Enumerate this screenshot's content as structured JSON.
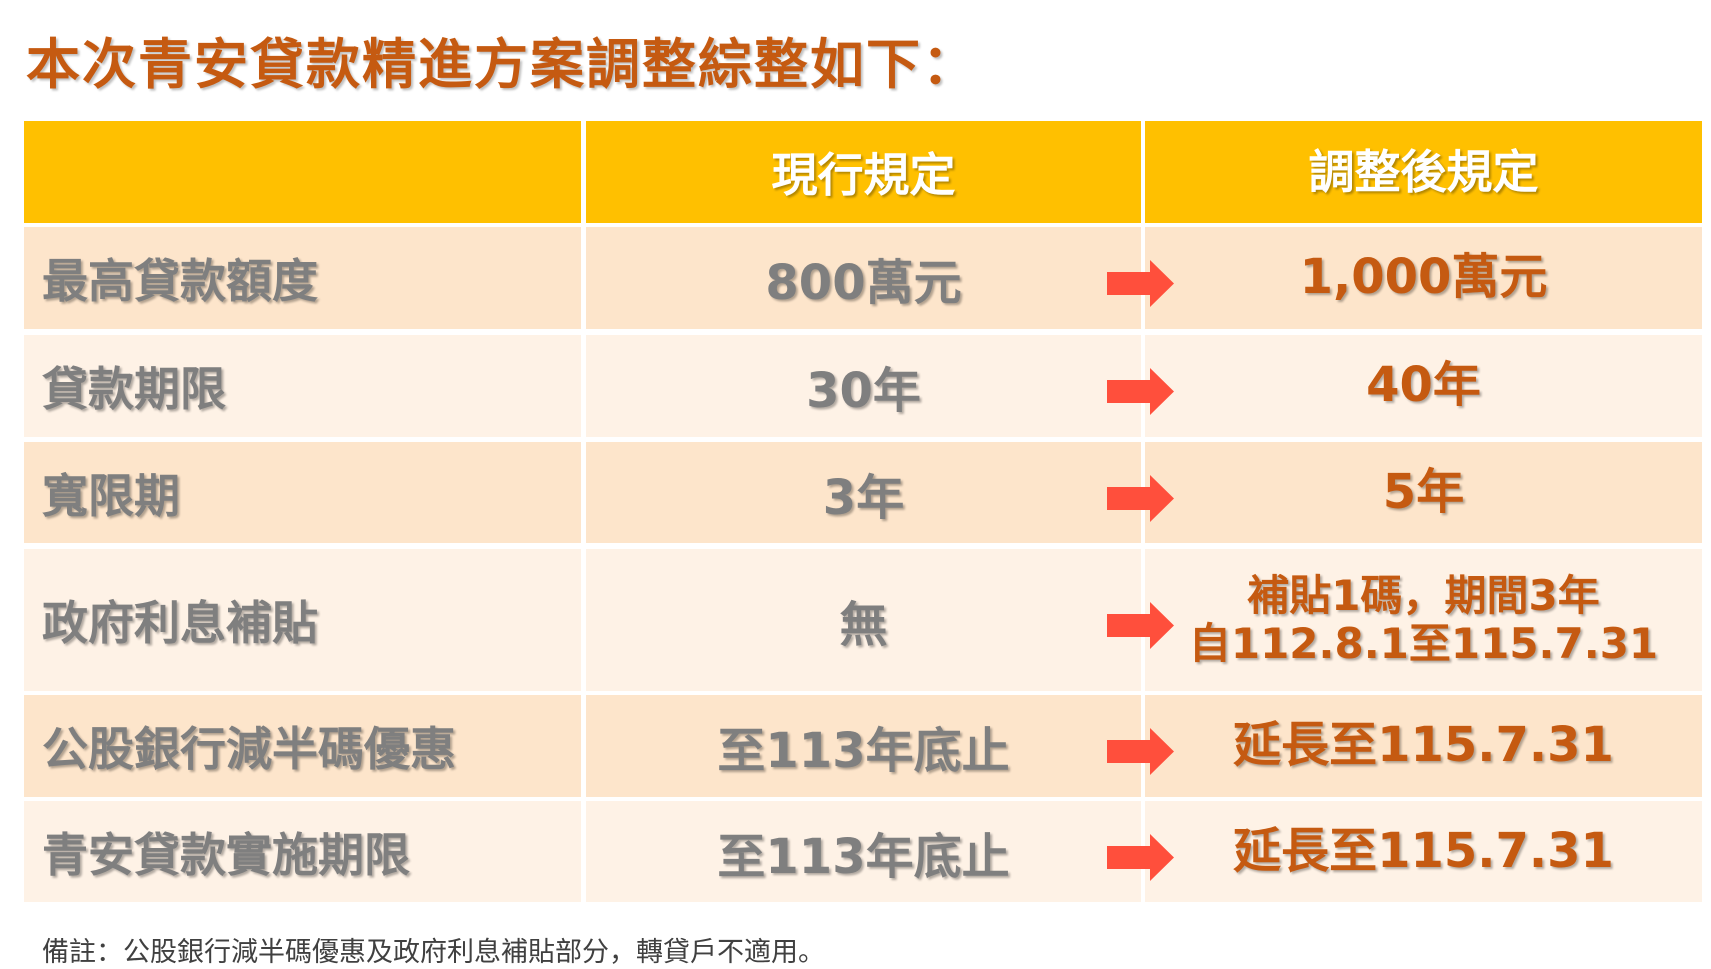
{
  "title": "本次青安貸款精進方案調整綜整如下：",
  "table": {
    "headers": [
      "",
      "現行規定",
      "調整後規定"
    ],
    "rows": [
      {
        "item": "最高貸款額度",
        "current": "800萬元",
        "adjusted": [
          "1,000萬元"
        ]
      },
      {
        "item": "貸款期限",
        "current": "30年",
        "adjusted": [
          "40年"
        ]
      },
      {
        "item": "寬限期",
        "current": "3年",
        "adjusted": [
          "5年"
        ]
      },
      {
        "item": "政府利息補貼",
        "current": "無",
        "adjusted": [
          "補貼1碼，期間3年",
          "自112.8.1至115.7.31"
        ]
      },
      {
        "item": "公股銀行減半碼優惠",
        "current": "至113年底止",
        "adjusted": [
          "延長至115.7.31"
        ]
      },
      {
        "item": "青安貸款實施期限",
        "current": "至113年底止",
        "adjusted": [
          "延長至115.7.31"
        ]
      }
    ]
  },
  "note": "備註：公股銀行減半碼優惠及政府利息補貼部分，轉貸戶不適用。",
  "colors": {
    "title": "#C55A11",
    "header": "#FFC000",
    "row_odd": "#FDE5CB",
    "row_even": "#FEF2E6",
    "arrow": "#FF4F3C",
    "adjusted_text": "#C55A11",
    "text": "#7F7F7F"
  },
  "icons": {
    "arrow": "right-arrow-icon"
  }
}
